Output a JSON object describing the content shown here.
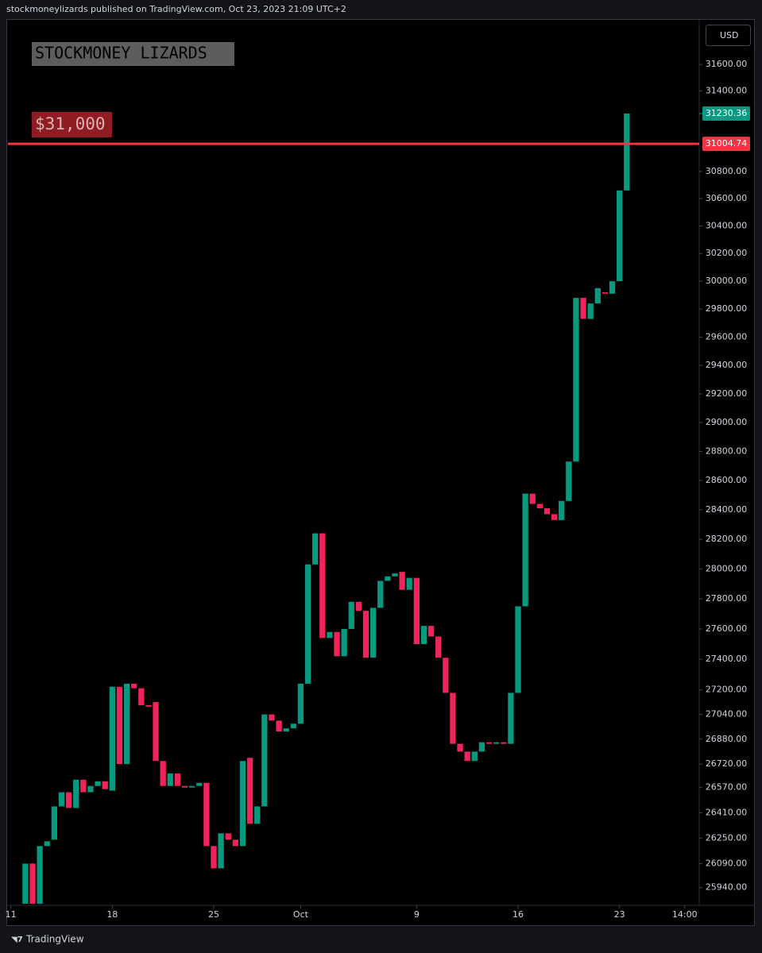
{
  "header": "stockmoneylizards published on TradingView.com, Oct 23, 2023 21:09 UTC+2",
  "footer": "TradingView",
  "chart_data": {
    "type": "candlestick",
    "currency": "USD",
    "watermark": "STOCKMONEY LIZARDS",
    "annotation": "$31,000",
    "log_scale": true,
    "grid": false,
    "up_color": "#089981",
    "down_color": "#f0245a",
    "hline": {
      "value": 31004.74,
      "label": "31004.74",
      "color": "#f23645"
    },
    "last_price": {
      "value": 31230.36,
      "label": "31230.36"
    },
    "ylim": [
      25830,
      31940
    ],
    "xlim": [
      -2.4,
      93
    ],
    "xticks": [
      {
        "value": -2,
        "label": "11"
      },
      {
        "value": 12,
        "label": "18"
      },
      {
        "value": 26,
        "label": "25"
      },
      {
        "value": 38,
        "label": "Oct"
      },
      {
        "value": 54,
        "label": "9"
      },
      {
        "value": 68,
        "label": "16"
      },
      {
        "value": 82,
        "label": "23"
      },
      {
        "value": 91,
        "label": "14:00"
      }
    ],
    "yticks": [
      {
        "value": 31600,
        "label": "31600.00"
      },
      {
        "value": 31400,
        "label": "31400.00"
      },
      {
        "value": 30800,
        "label": "30800.00"
      },
      {
        "value": 30600,
        "label": "30600.00"
      },
      {
        "value": 30400,
        "label": "30400.00"
      },
      {
        "value": 30200,
        "label": "30200.00"
      },
      {
        "value": 30000,
        "label": "30000.00"
      },
      {
        "value": 29800,
        "label": "29800.00"
      },
      {
        "value": 29600,
        "label": "29600.00"
      },
      {
        "value": 29400,
        "label": "29400.00"
      },
      {
        "value": 29200,
        "label": "29200.00"
      },
      {
        "value": 29000,
        "label": "29000.00"
      },
      {
        "value": 28800,
        "label": "28800.00"
      },
      {
        "value": 28600,
        "label": "28600.00"
      },
      {
        "value": 28400,
        "label": "28400.00"
      },
      {
        "value": 28200,
        "label": "28200.00"
      },
      {
        "value": 28000,
        "label": "28000.00"
      },
      {
        "value": 27800,
        "label": "27800.00"
      },
      {
        "value": 27600,
        "label": "27600.00"
      },
      {
        "value": 27400,
        "label": "27400.00"
      },
      {
        "value": 27200,
        "label": "27200.00"
      },
      {
        "value": 27040,
        "label": "27040.00"
      },
      {
        "value": 26880,
        "label": "26880.00"
      },
      {
        "value": 26720,
        "label": "26720.00"
      },
      {
        "value": 26570,
        "label": "26570.00"
      },
      {
        "value": 26410,
        "label": "26410.00"
      },
      {
        "value": 26250,
        "label": "26250.00"
      },
      {
        "value": 26090,
        "label": "26090.00"
      },
      {
        "value": 25940,
        "label": "25940.00"
      }
    ],
    "open": [
      25840,
      26090,
      25840,
      26200,
      26240,
      26450,
      26540,
      26440,
      26620,
      26540,
      26580,
      26610,
      26550,
      27220,
      26720,
      27240,
      27210,
      27100,
      27120,
      26740,
      26580,
      26660,
      26580,
      26570,
      26580,
      26600,
      26200,
      26060,
      26280,
      26240,
      26200,
      26760,
      26340,
      26450,
      27040,
      27000,
      26930,
      26950,
      26980,
      27240,
      28030,
      28240,
      27540,
      27580,
      27420,
      27600,
      27780,
      27720,
      27410,
      27740,
      27920,
      27950,
      27980,
      27860,
      27940,
      27500,
      27620,
      27550,
      27410,
      27180,
      26850,
      26800,
      26740,
      26800,
      26860,
      26850,
      26860,
      26850,
      27180,
      27750,
      28510,
      28440,
      28410,
      28370,
      28330,
      28460,
      28730,
      29880,
      29730,
      29840,
      29920,
      29910,
      30000,
      30660
    ],
    "close": [
      26090,
      25840,
      26200,
      26230,
      26450,
      26540,
      26440,
      26620,
      26540,
      26580,
      26610,
      26560,
      27220,
      26720,
      27240,
      27210,
      27100,
      27090,
      26740,
      26580,
      26660,
      26580,
      26570,
      26580,
      26600,
      26200,
      26060,
      26280,
      26240,
      26200,
      26740,
      26340,
      26450,
      27040,
      27000,
      26930,
      26950,
      26980,
      27240,
      28030,
      28240,
      27540,
      27580,
      27420,
      27600,
      27780,
      27720,
      27410,
      27740,
      27920,
      27950,
      27970,
      27860,
      27940,
      27500,
      27620,
      27550,
      27410,
      27180,
      26850,
      26800,
      26740,
      26800,
      26860,
      26850,
      26860,
      26850,
      27180,
      27750,
      28510,
      28440,
      28410,
      28370,
      28330,
      28460,
      28730,
      29880,
      29730,
      29840,
      29950,
      29910,
      30000,
      30660,
      31230.36
    ]
  }
}
